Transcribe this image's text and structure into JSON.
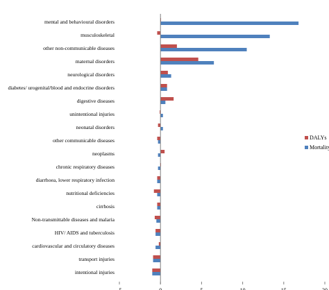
{
  "chart_data": {
    "type": "bar",
    "orientation": "horizontal",
    "title": "",
    "xlabel": "",
    "ylabel": "",
    "xlim": [
      -5,
      20
    ],
    "xticks": [
      "-5",
      "0",
      "5",
      "10",
      "15",
      "20"
    ],
    "grid": false,
    "legend_position": "right",
    "categories": [
      "mental and behavioural disorders",
      "musculoskeletal",
      "other non-communicable diseases",
      "maternal disorders",
      "neurological disorders",
      "diabetes/ urogenital/blood and endocrine disorders",
      "digestive diseases",
      "unintentional injuries",
      "neonatal disorders",
      "other communicable diseases",
      "neoplasms",
      "chronic respiratory diseases",
      "diarrhoea, lower respiratory infection",
      "nutritional deficiencies",
      "cirrhosis",
      "Non-transmittable diseases and malaria",
      "HIV/ AIDS and tuberculosis",
      "cardiovascular and circulatory diseases",
      "transport injuries",
      "intentional injuries"
    ],
    "series": [
      {
        "name": "DALYs",
        "color": "#c0504d",
        "values": [
          0,
          -0.4,
          2.0,
          4.6,
          0.9,
          0.8,
          1.6,
          -0.1,
          -0.3,
          -0.4,
          0.5,
          0,
          -0.4,
          -0.8,
          -0.4,
          -0.7,
          -0.6,
          -0.2,
          -0.9,
          -1.0
        ]
      },
      {
        "name": "Mortality",
        "color": "#4f81bd",
        "values": [
          16.8,
          13.3,
          10.5,
          6.5,
          1.3,
          0.8,
          0.6,
          0.3,
          0.3,
          -0.3,
          -0.3,
          -0.3,
          -0.4,
          -0.4,
          -0.4,
          -0.5,
          -0.6,
          -0.6,
          -0.9,
          -1.0
        ]
      }
    ]
  }
}
